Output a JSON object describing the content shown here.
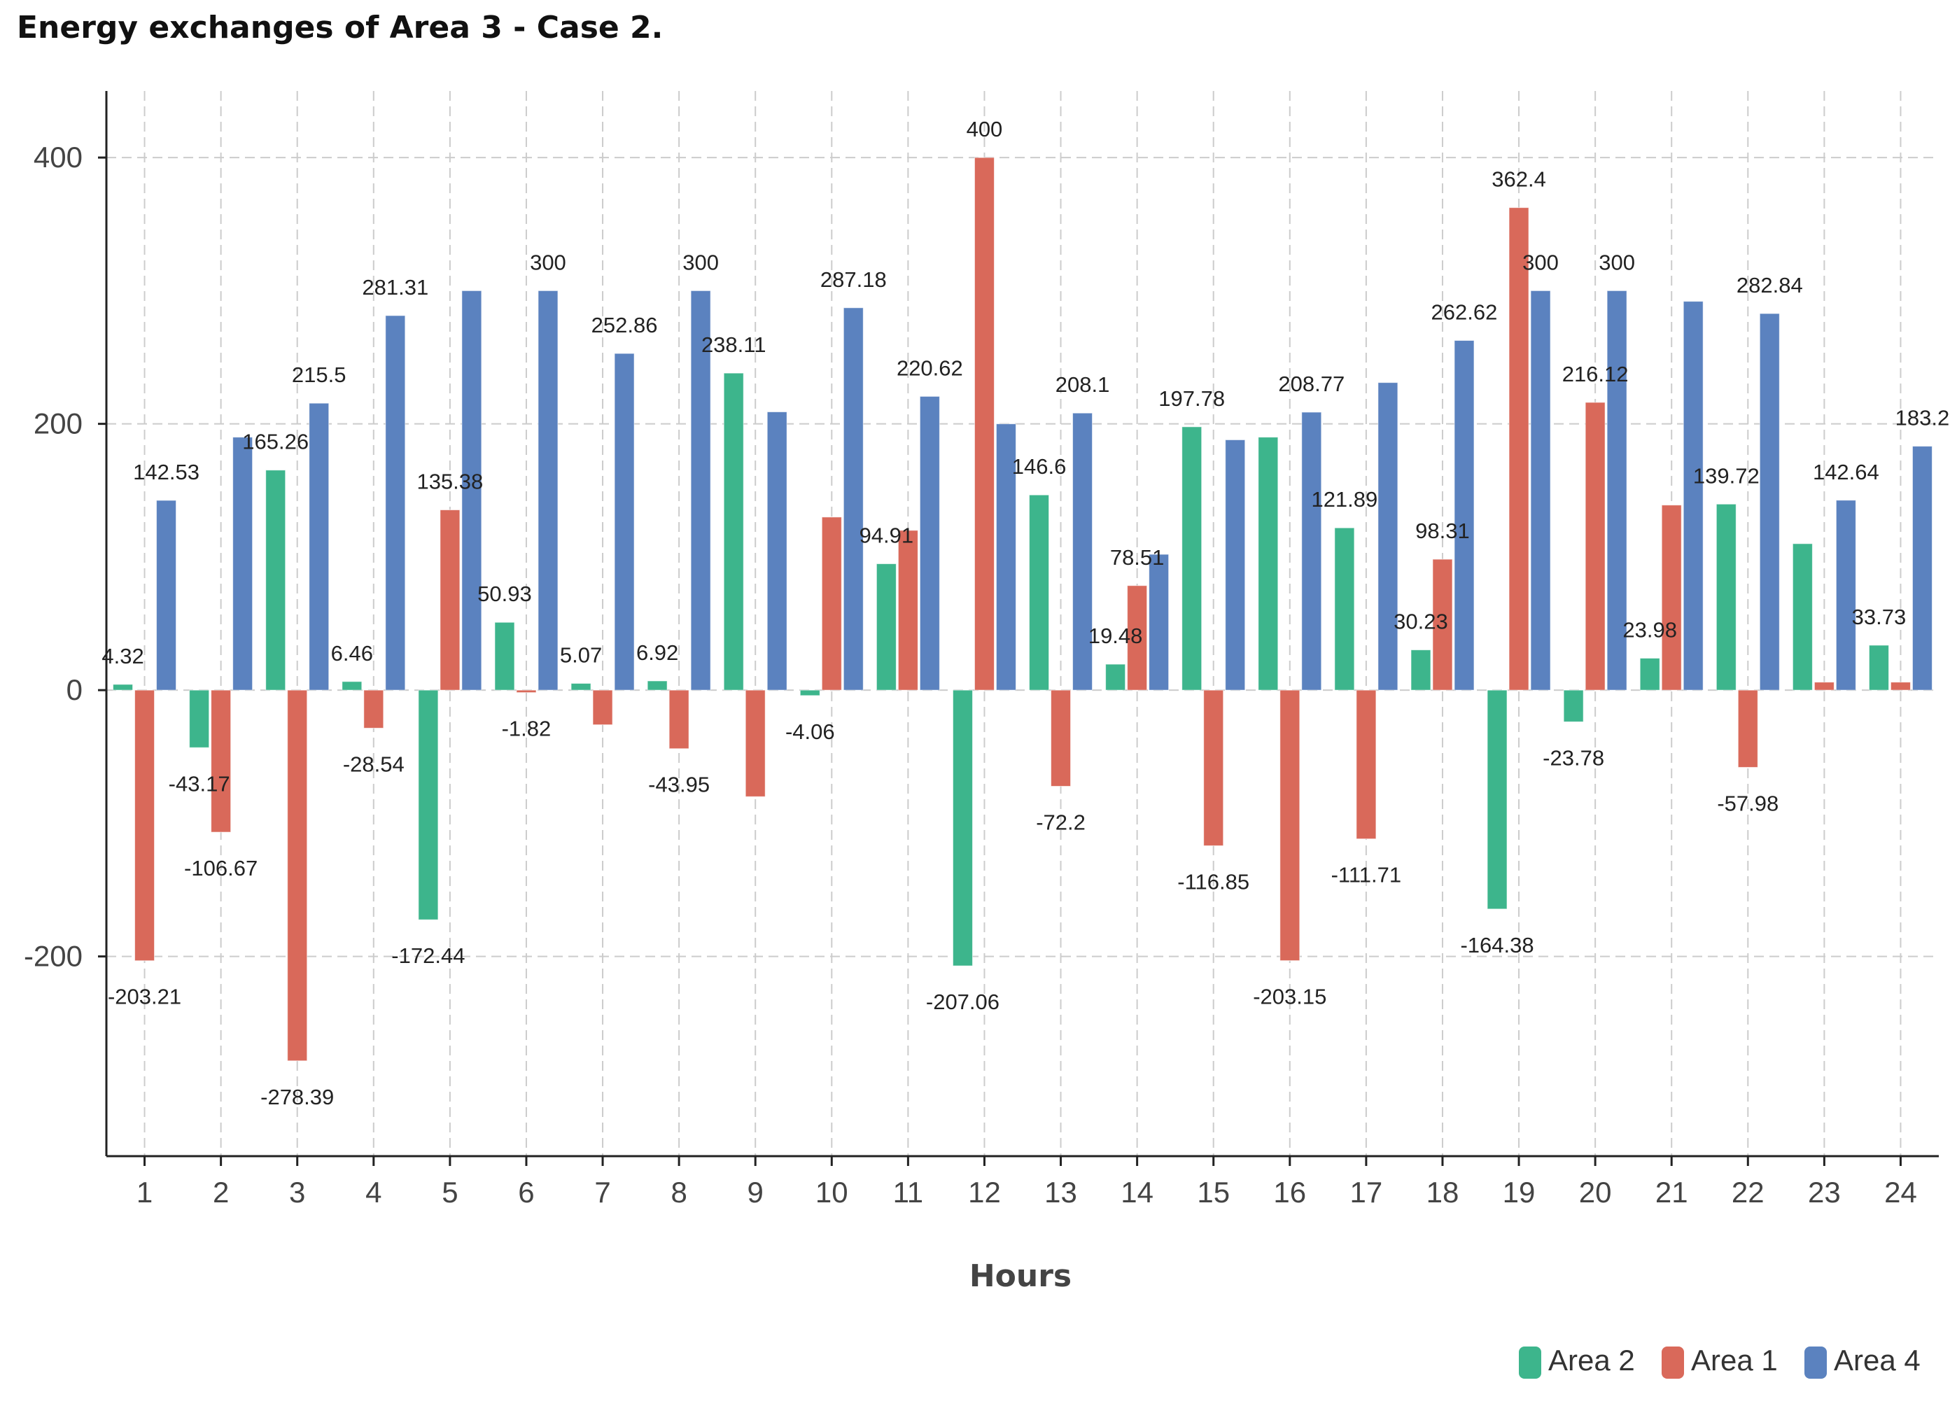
{
  "chart_data": {
    "type": "bar",
    "title": "Energy exchanges of Area 3 - Case 2.",
    "xlabel": "Hours",
    "ylabel": "",
    "ylim": [
      -350,
      450
    ],
    "yticks": [
      -200,
      0,
      200,
      400
    ],
    "grid": true,
    "legend_position": "bottom-right",
    "categories": [
      "1",
      "2",
      "3",
      "4",
      "5",
      "6",
      "7",
      "8",
      "9",
      "10",
      "11",
      "12",
      "13",
      "14",
      "15",
      "16",
      "17",
      "18",
      "19",
      "20",
      "21",
      "22",
      "23",
      "24"
    ],
    "series": [
      {
        "name": "Area 2",
        "color": "#3db58c",
        "values": [
          4.32,
          -43.17,
          165.26,
          6.46,
          -172.44,
          50.93,
          5.07,
          6.92,
          238.11,
          -4.06,
          94.91,
          -207.06,
          146.6,
          19.48,
          197.78,
          190,
          121.89,
          30.23,
          -164.38,
          -23.78,
          23.98,
          139.72,
          110,
          33.73
        ],
        "labels": [
          "4.32",
          "-43.17",
          "165.26",
          "6.46",
          "-172.44",
          "50.93",
          "5.07",
          "6.92",
          "238.11",
          "-4.06",
          "94.91",
          "-207.06",
          "146.6",
          "19.48",
          "197.78",
          "",
          "121.89",
          "30.23",
          "-164.38",
          "-23.78",
          "23.98",
          "139.72",
          "",
          "33.73"
        ]
      },
      {
        "name": "Area 1",
        "color": "#d9695a",
        "values": [
          -203.21,
          -106.67,
          -278.39,
          -28.54,
          135.38,
          -1.82,
          -26,
          -43.95,
          -80,
          130,
          120,
          400,
          -72.2,
          78.51,
          -116.85,
          -203.15,
          -111.71,
          98.31,
          362.4,
          216.12,
          139,
          -57.98,
          6,
          6
        ],
        "labels": [
          "-203.21",
          "-106.67",
          "-278.39",
          "-28.54",
          "135.38",
          "-1.82",
          "",
          "-43.95",
          "",
          "",
          "",
          "400",
          "-72.2",
          "78.51",
          "-116.85",
          "-203.15",
          "-111.71",
          "98.31",
          "362.4",
          "216.12",
          "",
          "-57.98",
          "",
          ""
        ]
      },
      {
        "name": "Area 4",
        "color": "#5b82bf",
        "values": [
          142.53,
          190,
          215.5,
          281.31,
          300,
          300,
          252.86,
          300,
          209,
          287.18,
          220.62,
          200,
          208.1,
          102,
          188,
          208.77,
          231,
          262.62,
          300,
          300,
          292,
          282.84,
          142.64,
          183.2
        ],
        "labels": [
          "142.53",
          "",
          "215.5",
          "281.31",
          "",
          "300",
          "252.86",
          "300",
          "",
          "287.18",
          "220.62",
          "",
          "208.1",
          "",
          "",
          "208.77",
          "",
          "262.62",
          "300",
          "300",
          "",
          "282.84",
          "142.64",
          "183.2"
        ]
      }
    ]
  }
}
